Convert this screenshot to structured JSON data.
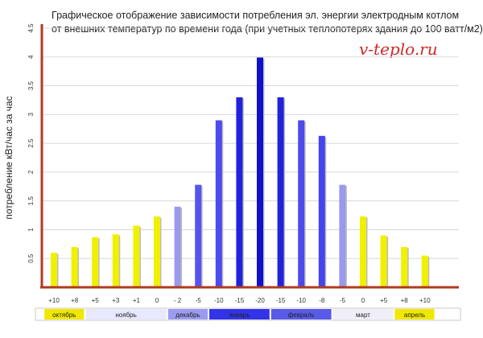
{
  "chart_data": {
    "type": "bar",
    "title_lines": [
      "Графическое отображение зависимости потребления эл. энергии электродным котлом",
      "от внешних температур по времени года (при  учетных теплопотерях здания до 100 ватт/м2)"
    ],
    "watermark": "v-teplo.ru",
    "ylabel": "потребление кВт/час за час",
    "xlabel": "",
    "ylim": [
      0,
      4.5
    ],
    "yticks": [
      "0.5",
      "1",
      "1.5",
      "2",
      "2.5",
      "3",
      "3.5",
      "4",
      "4.5"
    ],
    "categories": [
      "+10",
      "+8",
      "+5",
      "+3",
      "+1",
      "0",
      "- 2",
      "-5",
      "-10",
      "-15",
      "-20",
      "-15",
      "-10",
      "-8",
      "-5",
      "0",
      "+5",
      "+8",
      "+10"
    ],
    "values": [
      0.6,
      0.7,
      0.87,
      0.92,
      1.07,
      1.23,
      1.4,
      1.78,
      2.9,
      3.3,
      3.99,
      3.3,
      2.9,
      2.63,
      1.78,
      1.23,
      0.9,
      0.7,
      0.55
    ],
    "bar_colors": [
      "#f0f000",
      "#f0f000",
      "#f0f000",
      "#f0f000",
      "#f0f000",
      "#f0f000",
      "#9999ee",
      "#5555ee",
      "#4b4bee",
      "#2222dd",
      "#1111cc",
      "#2222dd",
      "#4b4bee",
      "#4444ee",
      "#9999ee",
      "#f0f000",
      "#f0f000",
      "#f0f000",
      "#f0f000"
    ],
    "months": [
      {
        "label": "октябрь",
        "color": "#f0e800",
        "start": 0,
        "end": 1
      },
      {
        "label": "ноябрь",
        "color": "#e8e8ff",
        "start": 2,
        "end": 5
      },
      {
        "label": "декабрь",
        "color": "#9b9bf0",
        "start": 6,
        "end": 7
      },
      {
        "label": "январь",
        "color": "#3333e8",
        "start": 8,
        "end": 10
      },
      {
        "label": "февраль",
        "color": "#5a5ae8",
        "start": 11,
        "end": 13
      },
      {
        "label": "март",
        "color": "#f0eef8",
        "start": 14,
        "end": 16
      },
      {
        "label": "апрель",
        "color": "#f0e800",
        "start": 17,
        "end": 18
      }
    ]
  },
  "colors": {
    "title": "#222222",
    "watermark": "#cc2a2a",
    "axis": "#b03a20",
    "gridline": "#d8d8d8",
    "tick_label": "#333333"
  }
}
